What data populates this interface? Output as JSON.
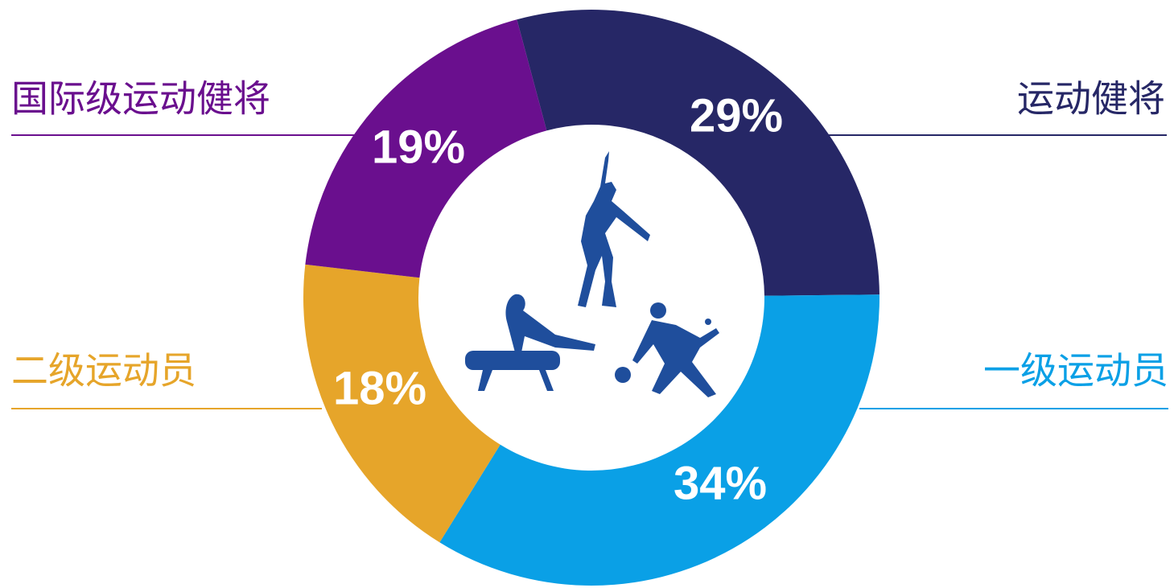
{
  "chart_data": {
    "type": "donut",
    "categories": [
      "运动健将",
      "一级运动员",
      "二级运动员",
      "国际级运动健将"
    ],
    "values": [
      29,
      34,
      18,
      19
    ],
    "value_labels": [
      "29%",
      "34%",
      "18%",
      "19%"
    ],
    "colors": [
      "#262766",
      "#0aa0e6",
      "#e6a52a",
      "#6a0f8e"
    ]
  }
}
